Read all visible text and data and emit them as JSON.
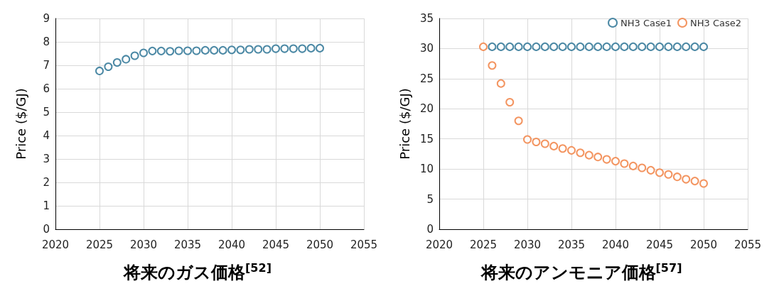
{
  "chart_data": [
    {
      "type": "scatter",
      "title": "将来のガス価格$^{[52]}$",
      "ylabel": "Price ($/GJ)",
      "x": [
        2025,
        2026,
        2027,
        2028,
        2029,
        2030,
        2031,
        2032,
        2033,
        2034,
        2035,
        2036,
        2037,
        2038,
        2039,
        2040,
        2041,
        2042,
        2043,
        2044,
        2045,
        2046,
        2047,
        2048,
        2049,
        2050
      ],
      "series": [
        {
          "color": "#1f6b8e",
          "values": [
            6.76,
            6.94,
            7.12,
            7.26,
            7.41,
            7.53,
            7.61,
            7.61,
            7.6,
            7.62,
            7.62,
            7.62,
            7.64,
            7.64,
            7.64,
            7.66,
            7.66,
            7.68,
            7.68,
            7.68,
            7.71,
            7.71,
            7.71,
            7.71,
            7.73,
            7.73
          ]
        }
      ],
      "xlim": [
        2020,
        2055
      ],
      "xticks": [
        2020,
        2025,
        2030,
        2035,
        2040,
        2045,
        2050,
        2055
      ],
      "ylim": [
        0,
        9
      ],
      "yticks": [
        0,
        1,
        2,
        3,
        4,
        5,
        6,
        7,
        8,
        9
      ],
      "grid": true,
      "marker": "circle"
    },
    {
      "type": "scatter",
      "title": "将来のアンモニア価格$^{[57]}$",
      "ylabel": "Price ($/GJ)",
      "x": [
        2025,
        2026,
        2027,
        2028,
        2029,
        2030,
        2031,
        2032,
        2033,
        2034,
        2035,
        2036,
        2037,
        2038,
        2039,
        2040,
        2041,
        2042,
        2043,
        2044,
        2045,
        2046,
        2047,
        2048,
        2049,
        2050
      ],
      "series": [
        {
          "name": "NH3 Case1",
          "color": "#1f6b8e",
          "values": [
            null,
            30.3,
            30.3,
            30.3,
            30.3,
            30.3,
            30.3,
            30.3,
            30.3,
            30.3,
            30.3,
            30.3,
            30.3,
            30.3,
            30.3,
            30.3,
            30.3,
            30.3,
            30.3,
            30.3,
            30.3,
            30.3,
            30.3,
            30.3,
            30.3,
            30.3
          ]
        },
        {
          "name": "NH3 Case2",
          "color": "#f07a3a",
          "values": [
            30.3,
            27.2,
            24.2,
            21.1,
            18.0,
            14.9,
            14.5,
            14.2,
            13.8,
            13.4,
            13.1,
            12.7,
            12.3,
            12.0,
            11.6,
            11.3,
            10.9,
            10.5,
            10.2,
            9.8,
            9.4,
            9.1,
            8.7,
            8.3,
            8.0,
            7.6
          ]
        }
      ],
      "xlim": [
        2020,
        2055
      ],
      "xticks": [
        2020,
        2025,
        2030,
        2035,
        2040,
        2045,
        2050,
        2055
      ],
      "ylim": [
        0,
        35
      ],
      "yticks": [
        0,
        5,
        10,
        15,
        20,
        25,
        30,
        35
      ],
      "grid": true,
      "legend": "top right",
      "marker": "circle"
    }
  ]
}
